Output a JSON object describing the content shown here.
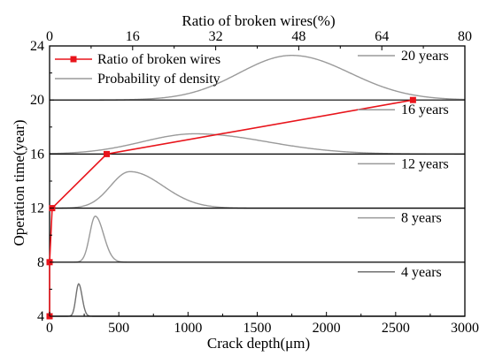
{
  "chart_data": {
    "type": "line",
    "xlabel_bottom": "Crack depth(μm)",
    "xlabel_top": "Ratio of broken wires(%)",
    "ylabel": "Operation time(year)",
    "xlim_bottom": [
      0,
      3000
    ],
    "xlim_top": [
      0,
      80
    ],
    "ylim": [
      4,
      24
    ],
    "x_ticks_bottom": [
      "0",
      "500",
      "1000",
      "1500",
      "2000",
      "2500",
      "3000"
    ],
    "x_ticks_top": [
      "0",
      "16",
      "32",
      "48",
      "64",
      "80"
    ],
    "y_ticks": [
      "4",
      "8",
      "12",
      "16",
      "20",
      "24"
    ],
    "legend": {
      "placement": "top-left",
      "entries": [
        "Ratio of broken wires",
        "Probability of density"
      ]
    },
    "series": [
      {
        "name": "Ratio of broken wires",
        "color": "#e8141b",
        "marker": "square",
        "axis": "top",
        "points": [
          {
            "x": 0,
            "y": 4
          },
          {
            "x": 0,
            "y": 8
          },
          {
            "x": 0.5,
            "y": 12
          },
          {
            "x": 11,
            "y": 16
          },
          {
            "x": 70,
            "y": 20
          }
        ]
      }
    ],
    "density_panels": [
      {
        "label": "20 years",
        "baseline": 20,
        "mean": 1750,
        "sd_left": 380,
        "sd_right": 420,
        "peak_height": 3.3,
        "color": "#9a9a9a"
      },
      {
        "label": "16 years",
        "baseline": 16,
        "mean": 1050,
        "sd_left": 380,
        "sd_right": 520,
        "peak_height": 1.5,
        "color": "#9a9a9a"
      },
      {
        "label": "12 years",
        "baseline": 12,
        "mean": 580,
        "sd_left": 140,
        "sd_right": 240,
        "peak_height": 2.7,
        "color": "#9a9a9a"
      },
      {
        "label": "8 years",
        "baseline": 8,
        "mean": 330,
        "sd_left": 40,
        "sd_right": 60,
        "peak_height": 3.4,
        "color": "#9a9a9a"
      },
      {
        "label": "4 years",
        "baseline": 4,
        "mean": 210,
        "sd_left": 20,
        "sd_right": 25,
        "peak_height": 2.4,
        "color": "#707070"
      }
    ],
    "panel_separators": [
      8,
      12,
      16,
      20
    ]
  }
}
